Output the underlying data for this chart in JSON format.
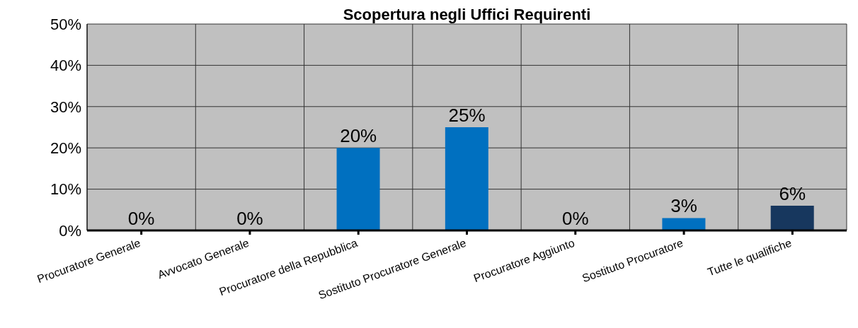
{
  "chart_data": {
    "type": "bar",
    "title": "Scopertura negli Uffici Requirenti",
    "categories": [
      "Procuratore Generale",
      "Avvocato Generale",
      "Procuratore della Repubblica",
      "Sostituto Procuratore Generale",
      "Procuratore Aggiunto",
      "Sostituto Procuratore",
      "Tutte le qualifiche"
    ],
    "values": [
      0,
      0,
      20,
      25,
      0,
      3,
      6
    ],
    "colors": [
      "#0070c0",
      "#0070c0",
      "#0070c0",
      "#0070c0",
      "#0070c0",
      "#0070c0",
      "#17375e"
    ],
    "value_labels": [
      "0%",
      "0%",
      "20%",
      "25%",
      "0%",
      "3%",
      "6%"
    ],
    "ylim": [
      0,
      50
    ],
    "yticks": [
      {
        "value": 0,
        "label": "0%"
      },
      {
        "value": 10,
        "label": "10%"
      },
      {
        "value": 20,
        "label": "20%"
      },
      {
        "value": 30,
        "label": "30%"
      },
      {
        "value": 40,
        "label": "40%"
      },
      {
        "value": 50,
        "label": "50%"
      }
    ],
    "grid": true
  }
}
